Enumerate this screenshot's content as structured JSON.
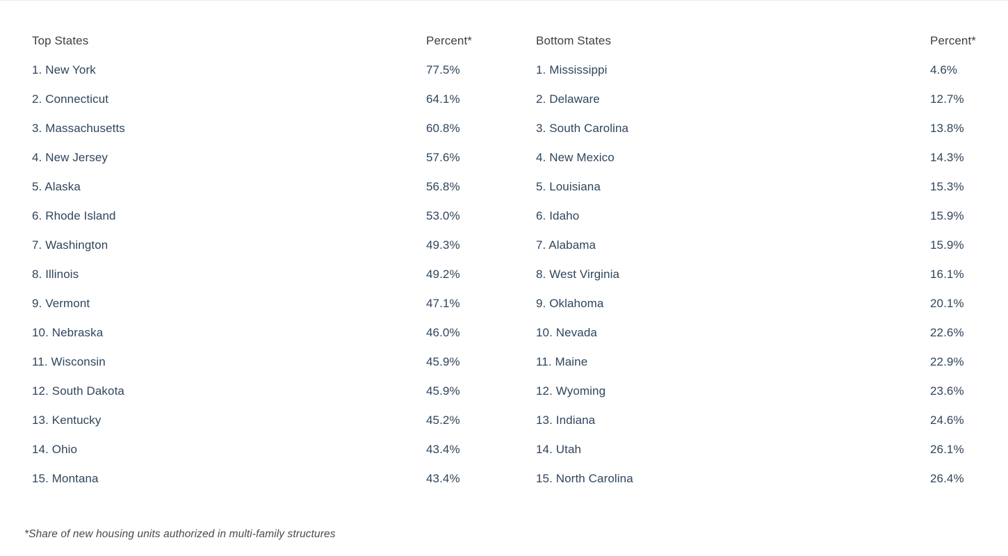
{
  "colors": {
    "header_text": "#3c4043",
    "row_text": "#2f455c",
    "footnote_text": "#4a4a4a",
    "background": "#ffffff"
  },
  "chart_data": {
    "type": "table",
    "tables": [
      {
        "header": {
          "label": "Top States",
          "value_label": "Percent*"
        },
        "rows": [
          {
            "label": "1. New York",
            "value": "77.5%"
          },
          {
            "label": "2. Connecticut",
            "value": "64.1%"
          },
          {
            "label": "3. Massachusetts",
            "value": "60.8%"
          },
          {
            "label": "4. New Jersey",
            "value": "57.6%"
          },
          {
            "label": "5. Alaska",
            "value": "56.8%"
          },
          {
            "label": "6. Rhode Island",
            "value": "53.0%"
          },
          {
            "label": "7. Washington",
            "value": "49.3%"
          },
          {
            "label": "8. Illinois",
            "value": "49.2%"
          },
          {
            "label": "9. Vermont",
            "value": "47.1%"
          },
          {
            "label": "10. Nebraska",
            "value": "46.0%"
          },
          {
            "label": "11. Wisconsin",
            "value": "45.9%"
          },
          {
            "label": "12. South Dakota",
            "value": "45.9%"
          },
          {
            "label": "13. Kentucky",
            "value": "45.2%"
          },
          {
            "label": "14. Ohio",
            "value": "43.4%"
          },
          {
            "label": "15. Montana",
            "value": "43.4%"
          }
        ]
      },
      {
        "header": {
          "label": "Bottom States",
          "value_label": "Percent*"
        },
        "rows": [
          {
            "label": "1. Mississippi",
            "value": "4.6%"
          },
          {
            "label": "2. Delaware",
            "value": "12.7%"
          },
          {
            "label": "3. South Carolina",
            "value": "13.8%"
          },
          {
            "label": "4. New Mexico",
            "value": "14.3%"
          },
          {
            "label": "5. Louisiana",
            "value": "15.3%"
          },
          {
            "label": "6. Idaho",
            "value": "15.9%"
          },
          {
            "label": "7. Alabama",
            "value": "15.9%"
          },
          {
            "label": "8. West Virginia",
            "value": "16.1%"
          },
          {
            "label": "9. Oklahoma",
            "value": "20.1%"
          },
          {
            "label": "10. Nevada",
            "value": "22.6%"
          },
          {
            "label": "11. Maine",
            "value": "22.9%"
          },
          {
            "label": "12. Wyoming",
            "value": "23.6%"
          },
          {
            "label": "13. Indiana",
            "value": "24.6%"
          },
          {
            "label": "14. Utah",
            "value": "26.1%"
          },
          {
            "label": "15. North Carolina",
            "value": "26.4%"
          }
        ]
      }
    ],
    "footnote": "*Share of new housing units authorized in multi-family structures"
  }
}
